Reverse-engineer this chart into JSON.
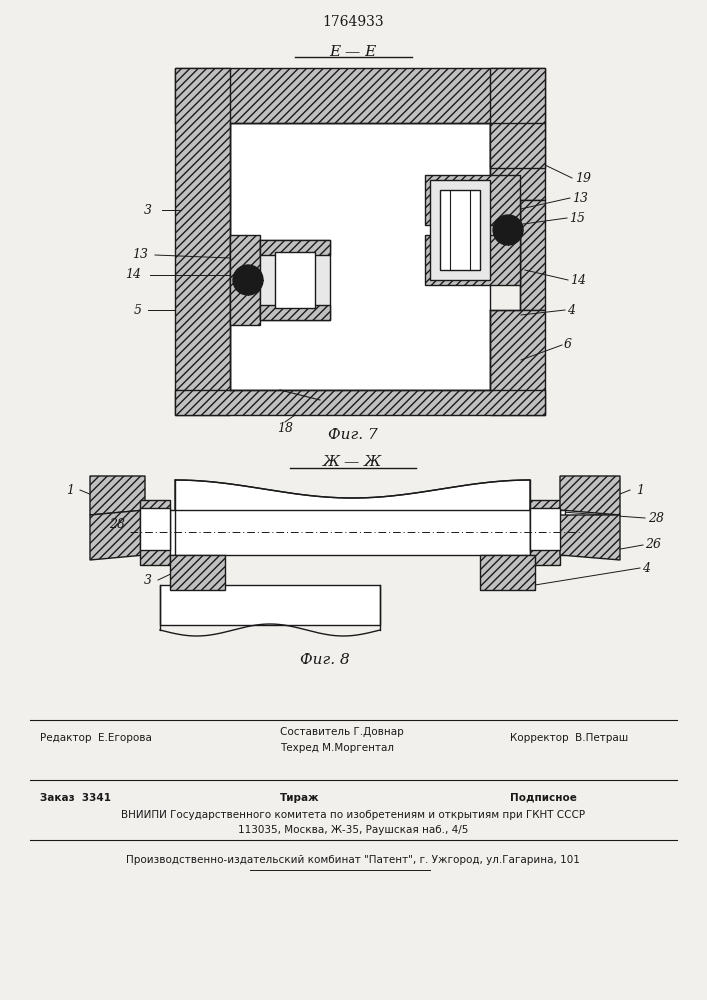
{
  "patent_number": "1764933",
  "fig7_label": "E — E",
  "fig7_caption": "Фиг. 7",
  "fig8_label": "Ж — Ж",
  "fig8_caption": "Фиг. 8",
  "bg_color": "#f2f0ec",
  "line_color": "#1a1a1a",
  "footer_line1_left": "Редактор  Е.Егорова",
  "footer_line1_center1": "Составитель Г.Довнар",
  "footer_line1_center2": "Техред М.Моргентал",
  "footer_line1_right": "Корректор  В.Петраш",
  "footer_line2_left": "Заказ  3341",
  "footer_line2_center": "Тираж",
  "footer_line2_right": "Подписное",
  "footer_line3": "ВНИИПИ Государственного комитета по изобретениям и открытиям при ГКНТ СССР",
  "footer_line4": "113035, Москва, Ж-35, Раушская наб., 4/5",
  "footer_line5": "Производственно-издательский комбинат \"Патент\", г. Ужгород, ул.Гагарина, 101"
}
